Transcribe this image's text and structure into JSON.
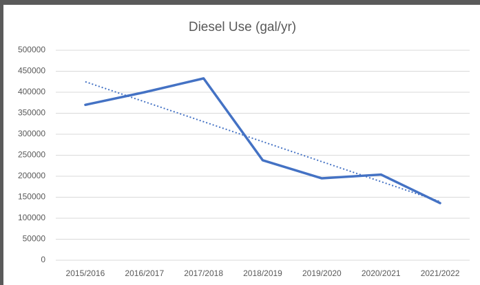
{
  "chart_data": {
    "type": "line",
    "title": "Diesel Use (gal/yr)",
    "categories": [
      "2015/2016",
      "2016/2017",
      "2017/2018",
      "2018/2019",
      "2019/2020",
      "2020/2021",
      "2021/2022"
    ],
    "values": [
      370000,
      400000,
      433000,
      238000,
      195000,
      204000,
      136000
    ],
    "color": "#4472c4",
    "trendline": "linear",
    "ylim": [
      0,
      500000
    ],
    "yticks": [
      0,
      50000,
      100000,
      150000,
      200000,
      250000,
      300000,
      350000,
      400000,
      450000,
      500000
    ],
    "grid": true
  }
}
